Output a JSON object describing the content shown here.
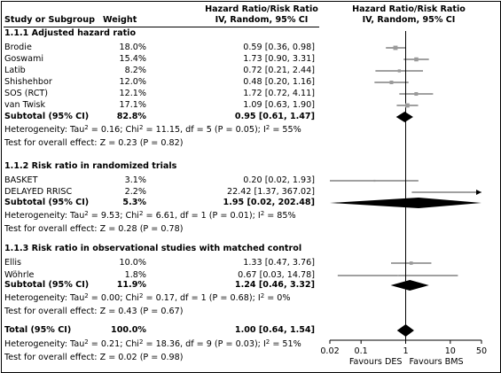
{
  "headers": {
    "study": "Study or Subgroup",
    "weight": "Weight",
    "measure_line1": "Hazard Ratio/Risk Ratio",
    "measure_line2": "IV, Random, 95% CI",
    "plot_line1": "Hazard Ratio/Risk Ratio",
    "plot_line2": "IV, Random, 95% CI"
  },
  "groups": [
    {
      "title": "1.1.1 Adjusted hazard ratio",
      "studies": [
        {
          "name": "Brodie",
          "weight": "18.0%",
          "ci_text": "0.59 [0.36, 0.98]",
          "est": 0.59,
          "lo": 0.36,
          "hi": 0.98,
          "w": 18.0
        },
        {
          "name": "Goswami",
          "weight": "15.4%",
          "ci_text": "1.73 [0.90, 3.31]",
          "est": 1.73,
          "lo": 0.9,
          "hi": 3.31,
          "w": 15.4
        },
        {
          "name": "Latib",
          "weight": "8.2%",
          "ci_text": "0.72 [0.21, 2.44]",
          "est": 0.72,
          "lo": 0.21,
          "hi": 2.44,
          "w": 8.2
        },
        {
          "name": "Shishehbor",
          "weight": "12.0%",
          "ci_text": "0.48 [0.20, 1.16]",
          "est": 0.48,
          "lo": 0.2,
          "hi": 1.16,
          "w": 12.0
        },
        {
          "name": "SOS (RCT)",
          "weight": "12.1%",
          "ci_text": "1.72 [0.72, 4.11]",
          "est": 1.72,
          "lo": 0.72,
          "hi": 4.11,
          "w": 12.1
        },
        {
          "name": "van Twisk",
          "weight": "17.1%",
          "ci_text": "1.09 [0.63, 1.90]",
          "est": 1.09,
          "lo": 0.63,
          "hi": 1.9,
          "w": 17.1
        }
      ],
      "subtotal": {
        "label": "Subtotal (95% CI)",
        "weight": "82.8%",
        "ci_text": "0.95 [0.61, 1.47]",
        "est": 0.95,
        "lo": 0.61,
        "hi": 1.47
      },
      "heterogeneity": {
        "a": "Heterogeneity: Tau",
        "b": " = 0.16; Chi",
        "c": " = 11.15, df = 5 (P = 0.05); I",
        "d": " = 55%"
      },
      "overall_test": "Test for overall effect: Z = 0.23 (P = 0.82)"
    },
    {
      "title": "1.1.2 Risk ratio in randomized trials",
      "studies": [
        {
          "name": "BASKET",
          "weight": "3.1%",
          "ci_text": "0.20 [0.02, 1.93]",
          "est": 0.2,
          "lo": 0.02,
          "hi": 1.93,
          "w": 3.1
        },
        {
          "name": "DELAYED RRISC",
          "weight": "2.2%",
          "ci_text": "22.42 [1.37, 367.02]",
          "est": 22.42,
          "lo": 1.37,
          "hi": 367.02,
          "w": 2.2
        }
      ],
      "subtotal": {
        "label": "Subtotal (95% CI)",
        "weight": "5.3%",
        "ci_text": "1.95 [0.02, 202.48]",
        "est": 1.95,
        "lo": 0.02,
        "hi": 202.48
      },
      "heterogeneity": {
        "a": "Heterogeneity: Tau",
        "b": " = 9.53; Chi",
        "c": " = 6.61, df = 1 (P = 0.01); I",
        "d": " = 85%"
      },
      "overall_test": "Test for overall effect: Z = 0.28 (P = 0.78)"
    },
    {
      "title": "1.1.3 Risk ratio in observational studies with matched control",
      "studies": [
        {
          "name": "Ellis",
          "weight": "10.0%",
          "ci_text": "1.33 [0.47, 3.76]",
          "est": 1.33,
          "lo": 0.47,
          "hi": 3.76,
          "w": 10.0
        },
        {
          "name": "Wöhrle",
          "weight": "1.8%",
          "ci_text": "0.67 [0.03, 14.78]",
          "est": 0.67,
          "lo": 0.03,
          "hi": 14.78,
          "w": 1.8
        }
      ],
      "subtotal": {
        "label": "Subtotal (95% CI)",
        "weight": "11.9%",
        "ci_text": "1.24 [0.46, 3.32]",
        "est": 1.24,
        "lo": 0.46,
        "hi": 3.32
      },
      "heterogeneity": {
        "a": "Heterogeneity: Tau",
        "b": " = 0.00; Chi",
        "c": " = 0.17, df = 1 (P = 0.68); I",
        "d": " = 0%"
      },
      "overall_test": "Test for overall effect: Z = 0.43 (P = 0.67)"
    }
  ],
  "total": {
    "label": "Total (95% CI)",
    "weight": "100.0%",
    "ci_text": "1.00 [0.64, 1.54]",
    "est": 1.0,
    "lo": 0.64,
    "hi": 1.54,
    "heterogeneity": {
      "a": "Heterogeneity: Tau",
      "b": " = 0.21; Chi",
      "c": " = 18.36, df = 9 (P = 0.03); I",
      "d": " = 51%"
    },
    "overall_test": "Test for overall effect: Z = 0.02 (P = 0.98)"
  },
  "sup2": "2",
  "chart_data": {
    "type": "forest",
    "scale": "log",
    "xlim": [
      0.02,
      50
    ],
    "ticks": [
      0.02,
      0.1,
      1,
      10,
      50
    ],
    "tick_labels": [
      "0.02",
      "0.1",
      "1",
      "10",
      "50"
    ],
    "reference_line": 1,
    "left_label": "Favours DES",
    "right_label": "Favours BMS",
    "grid": false
  },
  "colors": {
    "study_marker": "#9a9a9a",
    "line": "#000000"
  }
}
